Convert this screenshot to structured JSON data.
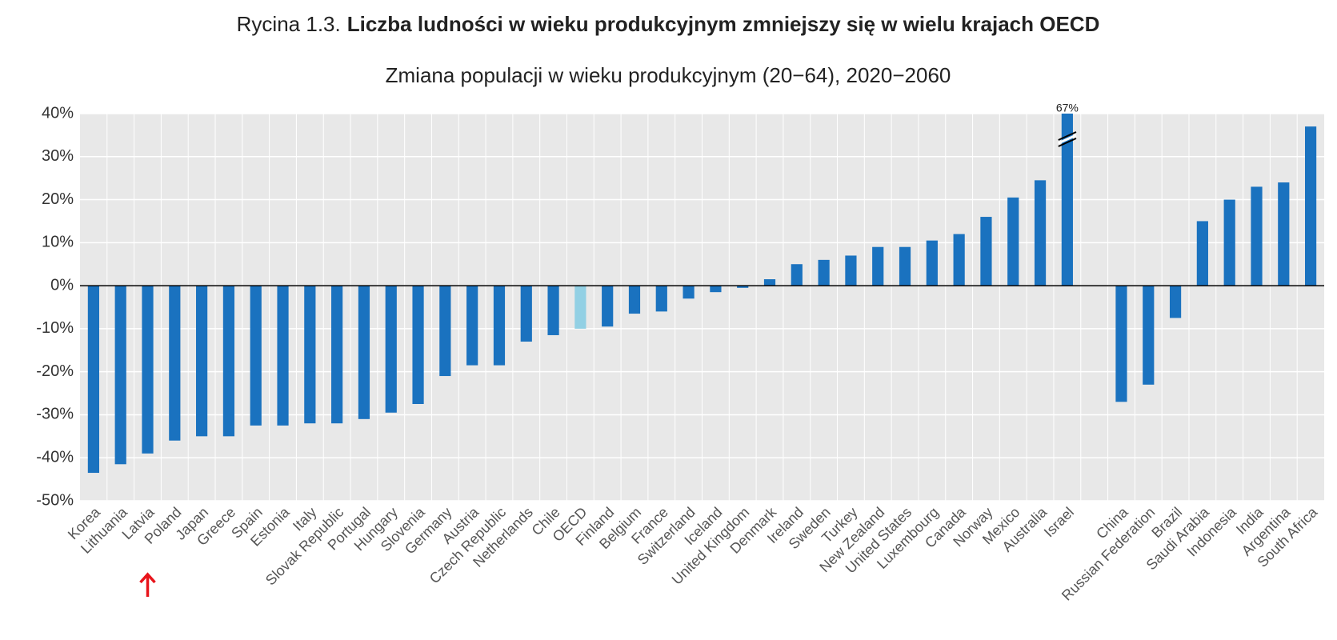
{
  "chart_data": {
    "type": "bar",
    "figure_label": "Rycina 1.3.",
    "title": "Liczba ludności w wieku produkcyjnym zmniejszy się w wielu krajach OECD",
    "subtitle": "Zmiana populacji w wieku produkcyjnym (20−64), 2020−2060",
    "categories": [
      "Korea",
      "Lithuania",
      "Latvia",
      "Poland",
      "Japan",
      "Greece",
      "Spain",
      "Estonia",
      "Italy",
      "Slovak Republic",
      "Portugal",
      "Hungary",
      "Slovenia",
      "Germany",
      "Austria",
      "Czech Republic",
      "Netherlands",
      "Chile",
      "OECD",
      "Finland",
      "Belgium",
      "France",
      "Switzerland",
      "Iceland",
      "United Kingdom",
      "Denmark",
      "Ireland",
      "Sweden",
      "Turkey",
      "New Zealand",
      "United States",
      "Luxembourg",
      "Canada",
      "Norway",
      "Mexico",
      "Australia",
      "Israel",
      null,
      "China",
      "Russian Federation",
      "Brazil",
      "Saudi Arabia",
      "Indonesia",
      "India",
      "Argentina",
      "South Africa"
    ],
    "values": [
      -43.5,
      -41.5,
      -39,
      -36,
      -35,
      -35,
      -32.5,
      -32.5,
      -32,
      -32,
      -31,
      -29.5,
      -27.5,
      -21,
      -18.5,
      -18.5,
      -13,
      -11.5,
      -10,
      -9.5,
      -6.5,
      -6,
      -3,
      -1.5,
      -0.5,
      1.5,
      5,
      6,
      7,
      9,
      9,
      10.5,
      12,
      16,
      20.5,
      24.5,
      67,
      null,
      -27,
      -23,
      -7.5,
      15,
      20,
      23,
      24,
      37
    ],
    "value_labels": [
      null,
      null,
      null,
      null,
      null,
      null,
      null,
      null,
      null,
      null,
      null,
      null,
      null,
      null,
      null,
      null,
      null,
      null,
      null,
      null,
      null,
      null,
      null,
      null,
      null,
      null,
      null,
      null,
      null,
      null,
      null,
      null,
      null,
      null,
      null,
      null,
      "67%",
      null,
      null,
      null,
      null,
      null,
      null,
      null,
      null,
      null
    ],
    "color": "#1a72bf",
    "highlight_category": "OECD",
    "highlight_color": "#92d0e4",
    "arrow_category": "Latvia",
    "arrow_color": "#e8141b",
    "ylim": [
      -50,
      40
    ],
    "yticks": [
      {
        "value": -50,
        "label": "-50%"
      },
      {
        "value": -40,
        "label": "-40%"
      },
      {
        "value": -30,
        "label": "-30%"
      },
      {
        "value": -20,
        "label": "-20%"
      },
      {
        "value": -10,
        "label": "-10%"
      },
      {
        "value": 0,
        "label": "0%"
      },
      {
        "value": 10,
        "label": "10%"
      },
      {
        "value": 20,
        "label": "20%"
      },
      {
        "value": 30,
        "label": "30%"
      },
      {
        "value": 40,
        "label": "40%"
      }
    ],
    "grid": true
  }
}
